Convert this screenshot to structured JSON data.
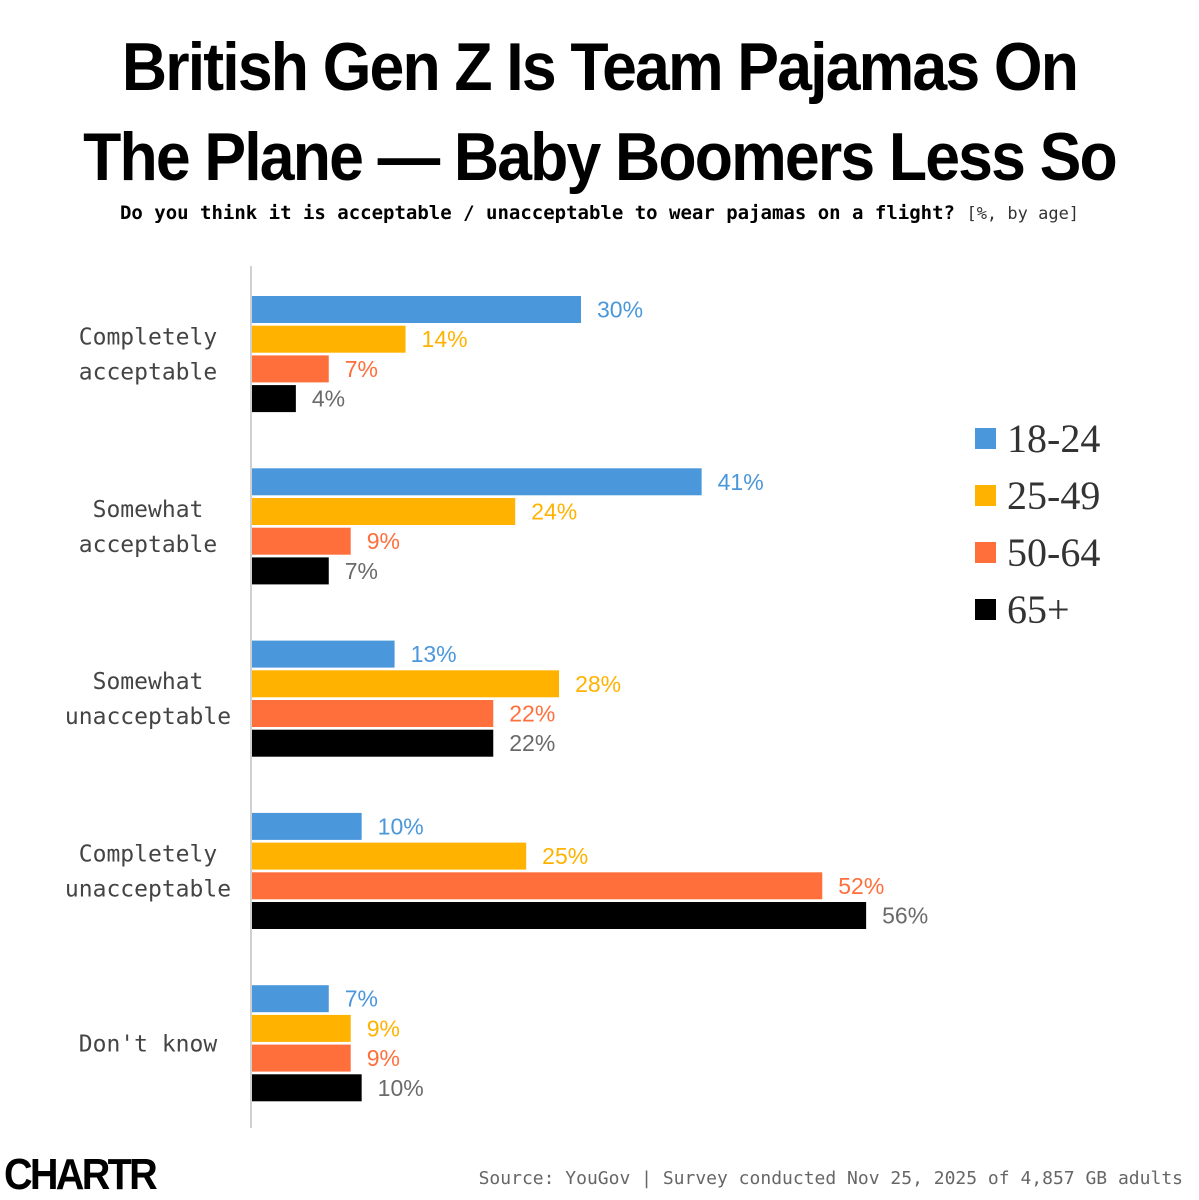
{
  "title_line1": "British Gen Z Is Team Pajamas On",
  "title_line2": "The Plane — Baby Boomers Less So",
  "subtitle_question": "Do you think it is acceptable / unacceptable to wear pajamas on a flight?",
  "subtitle_unit": "[%, by age]",
  "logo": "CHARTR",
  "source": "Source: YouGov | Survey conducted Nov 25, 2025 of 4,857 GB adults",
  "colors": {
    "18-24": "#4a97dc",
    "25-49": "#ffb300",
    "50-64": "#ff6f3c",
    "65+": "#000000",
    "label_65": "#6a6a6a",
    "axis": "#d0d0d0"
  },
  "chart_data": {
    "type": "bar",
    "orientation": "horizontal",
    "categories": [
      [
        "Completely",
        "acceptable"
      ],
      [
        "Somewhat",
        "acceptable"
      ],
      [
        "Somewhat",
        "unacceptable"
      ],
      [
        "Completely",
        "unacceptable"
      ],
      [
        "Don't know"
      ]
    ],
    "series": [
      {
        "name": "18-24",
        "values": [
          30,
          41,
          13,
          10,
          7
        ]
      },
      {
        "name": "25-49",
        "values": [
          14,
          24,
          28,
          25,
          9
        ]
      },
      {
        "name": "50-64",
        "values": [
          7,
          9,
          22,
          52,
          9
        ]
      },
      {
        "name": "65+",
        "values": [
          4,
          7,
          22,
          56,
          10
        ]
      }
    ],
    "value_suffix": "%",
    "legend_position": "right",
    "grid": false
  }
}
